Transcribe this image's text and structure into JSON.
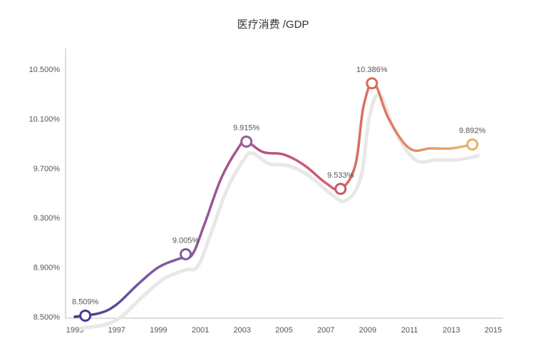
{
  "chart_data": {
    "type": "line",
    "title": "医疗消费 /GDP",
    "xlabel": "",
    "ylabel": "",
    "x_ticks": [
      "1995",
      "1997",
      "1999",
      "2001",
      "2003",
      "2005",
      "2007",
      "2009",
      "2011",
      "2013",
      "2015"
    ],
    "y_ticks": [
      "8.500%",
      "8.900%",
      "9.300%",
      "9.700%",
      "10.100%",
      "10.500%"
    ],
    "xlim": [
      1995,
      2015
    ],
    "ylim": [
      8.5,
      10.5
    ],
    "grid": false,
    "legend": "none",
    "series": [
      {
        "points": [
          {
            "x": 1995.0,
            "y": 8.5
          },
          {
            "x": 1996.2,
            "y": 8.53
          },
          {
            "x": 1997.0,
            "y": 8.6
          },
          {
            "x": 1998.0,
            "y": 8.76
          },
          {
            "x": 1999.0,
            "y": 8.9
          },
          {
            "x": 2000.0,
            "y": 8.97
          },
          {
            "x": 2000.6,
            "y": 9.0
          },
          {
            "x": 2001.2,
            "y": 9.25
          },
          {
            "x": 2002.0,
            "y": 9.62
          },
          {
            "x": 2002.8,
            "y": 9.86
          },
          {
            "x": 2003.2,
            "y": 9.915
          },
          {
            "x": 2004.0,
            "y": 9.83
          },
          {
            "x": 2005.0,
            "y": 9.81
          },
          {
            "x": 2006.0,
            "y": 9.72
          },
          {
            "x": 2007.0,
            "y": 9.58
          },
          {
            "x": 2007.7,
            "y": 9.533
          },
          {
            "x": 2008.4,
            "y": 9.72
          },
          {
            "x": 2008.8,
            "y": 10.2
          },
          {
            "x": 2009.3,
            "y": 10.386
          },
          {
            "x": 2010.0,
            "y": 10.1
          },
          {
            "x": 2011.0,
            "y": 9.86
          },
          {
            "x": 2012.0,
            "y": 9.86
          },
          {
            "x": 2013.0,
            "y": 9.86
          },
          {
            "x": 2014.0,
            "y": 9.892
          }
        ]
      }
    ],
    "annotations": [
      {
        "x": 1995.5,
        "y": 8.509,
        "label": "8.509%",
        "color": "#4a3b8f"
      },
      {
        "x": 2000.3,
        "y": 9.005,
        "label": "9.005%",
        "color": "#7b5aa0"
      },
      {
        "x": 2003.2,
        "y": 9.915,
        "label": "9.915%",
        "color": "#9a5a95"
      },
      {
        "x": 2007.7,
        "y": 9.533,
        "label": "9.533%",
        "color": "#c45a66"
      },
      {
        "x": 2009.2,
        "y": 10.386,
        "label": "10.386%",
        "color": "#d96a5a"
      },
      {
        "x": 2014.0,
        "y": 9.892,
        "label": "9.892%",
        "color": "#e4b06a"
      }
    ],
    "gradient_colors": [
      "#433a8e",
      "#7c5aa1",
      "#a35590",
      "#d0596a",
      "#e07e5e",
      "#e9b870"
    ],
    "shadow_color": "#e8e8e8",
    "axis_color": "#bbbbbb"
  }
}
